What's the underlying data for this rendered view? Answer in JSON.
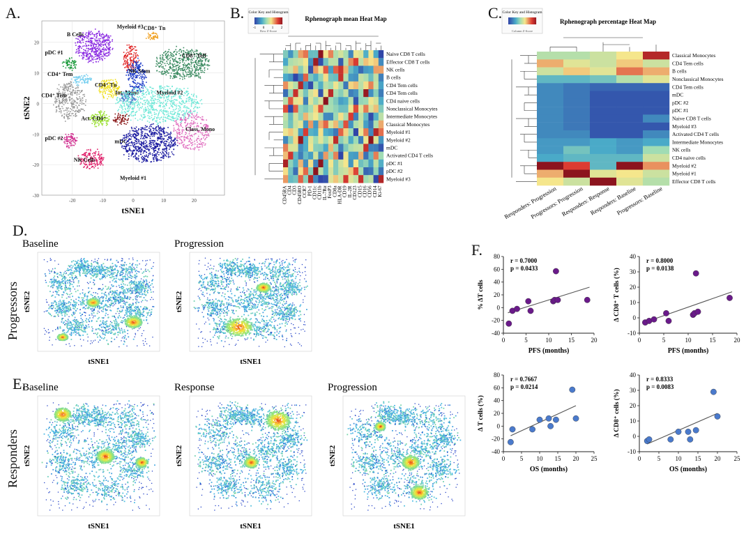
{
  "panels": {
    "A": {
      "label": "A.",
      "xlabel": "tSNE1",
      "ylabel": "tSNE2",
      "xticks": [
        "-20",
        "-10",
        "0",
        "10",
        "20"
      ],
      "yticks": [
        "20",
        "10",
        "0",
        "-10",
        "-20",
        "-30"
      ],
      "clusters": [
        {
          "name": "B Cells",
          "color": "#8b2be2"
        },
        {
          "name": "Myeloid #3",
          "color": "#e02020"
        },
        {
          "name": "CD8⁺ Tn",
          "color": "#f0a020"
        },
        {
          "name": "CD8⁺ Teff",
          "color": "#3a8a60"
        },
        {
          "name": "pDC #1",
          "color": "#1a9a3a"
        },
        {
          "name": "NK Stem",
          "color": "#1e3cc8"
        },
        {
          "name": "CD4⁺ Tem",
          "color": "#7ad0f0"
        },
        {
          "name": "CD4⁺ Tn",
          "color": "#f0e020"
        },
        {
          "name": "Int. Mono",
          "color": "#4a7acc"
        },
        {
          "name": "CD4⁺ Tem",
          "color": "#999999"
        },
        {
          "name": "Myeloid #2",
          "color": "#70e8d8"
        },
        {
          "name": "Act. CD4⁺",
          "color": "#9ae030"
        },
        {
          "name": "mDC",
          "color": "#8a1a1a"
        },
        {
          "name": "pDC #2",
          "color": "#d03090"
        },
        {
          "name": "NK Cells",
          "color": "#e0206a"
        },
        {
          "name": "Class. Mono",
          "color": "#e070c0"
        },
        {
          "name": "Myeloid #1",
          "color": "#1a1aa0"
        }
      ]
    },
    "B": {
      "label": "B.",
      "title": "Rphenograph mean Heat Map",
      "key_title": "Color Key and Histogram",
      "key_axis": "Row Z-Score",
      "key_ticks": [
        "-1",
        "0",
        "1",
        "2"
      ],
      "rows": [
        "Naive CD8 T cells",
        "Effector CD8 T cells",
        "NK cells",
        "B cells",
        "CD4 Tem cells",
        "CD4 Tem cells",
        "CD4 naive cells",
        "Nonclassical Monocytes",
        "Intermediate Monocytes",
        "Classical Monocytes",
        "Myeloid #1",
        "Myeloid #2",
        "mDC",
        "Activated CD4 T cells",
        "pDC #1",
        "pDC #2",
        "Myeloid #3"
      ],
      "cols": [
        "CD45RA",
        "CD4",
        "CD3",
        "CD45RO",
        "CCR7",
        "PD-1",
        "CD11c",
        "CD11b",
        "IL-7Rα",
        "FoxP3",
        "CD8a",
        "HLA-DR",
        "CD19",
        "IL-2R",
        "CD123",
        "CD15",
        "CD16",
        "CD56",
        "CD14",
        "Ki-67"
      ]
    },
    "C": {
      "label": "C.",
      "title": "Rphenograph percentage Heat Map",
      "key_title": "Color Key and Histogram",
      "key_axis": "Column Z-Score",
      "rows": [
        "Classical Monocytes",
        "CD4 Tem cells",
        "B cells",
        "Nonclassical Monocytes",
        "CD4 Tem cells",
        "mDC",
        "pDC #2",
        "pDC #1",
        "Naive CD8 T cells",
        "Myeloid #3",
        "Activated CD4 T cells",
        "Intermediate Monocytes",
        "NK cells",
        "CD4 naive cells",
        "Myeloid #2",
        "Myeloid #1",
        "Effector CD8 T cells"
      ],
      "cols": [
        "Responders: Progression",
        "Progressors: Progression",
        "Responders: Response",
        "Responders: Baseline",
        "Progressors: Baseline"
      ]
    },
    "D": {
      "label": "D.",
      "row_label": "Progressors",
      "plots": [
        {
          "title": "Baseline"
        },
        {
          "title": "Progression"
        }
      ],
      "xlabel": "tSNE1",
      "ylabel": "tSNE2"
    },
    "E": {
      "label": "E.",
      "row_label": "Responders",
      "plots": [
        {
          "title": "Baseline"
        },
        {
          "title": "Response"
        },
        {
          "title": "Progression"
        }
      ],
      "xlabel": "tSNE1",
      "ylabel": "tSNE2"
    },
    "F": {
      "label": "F."
    }
  },
  "chart_data": [
    {
      "type": "scatter",
      "id": "f1",
      "annotation_r": "r = 0.7000",
      "annotation_p": "p = 0.0433",
      "xlabel": "PFS (months)",
      "ylabel": "% ΔT cells",
      "xlim": [
        0,
        20
      ],
      "ylim": [
        -40,
        80
      ],
      "xticks": [
        0,
        5,
        10,
        15,
        20
      ],
      "yticks": [
        -40,
        -20,
        0,
        20,
        40,
        60,
        80
      ],
      "color": "#6a1a8a",
      "points": [
        [
          1.2,
          -25
        ],
        [
          2,
          -5
        ],
        [
          3,
          -2
        ],
        [
          5.5,
          10
        ],
        [
          6,
          -5
        ],
        [
          11,
          10
        ],
        [
          11.3,
          12
        ],
        [
          11.6,
          57
        ],
        [
          12,
          12
        ],
        [
          18.5,
          12
        ]
      ],
      "fit": [
        [
          1,
          -8
        ],
        [
          19,
          32
        ]
      ]
    },
    {
      "type": "scatter",
      "id": "f2",
      "annotation_r": "r = 0.8000",
      "annotation_p": "p = 0.0138",
      "xlabel": "PFS (months)",
      "ylabel": "Δ CD8⁺ T cells (%)",
      "xlim": [
        0,
        20
      ],
      "ylim": [
        -10,
        40
      ],
      "xticks": [
        0,
        5,
        10,
        15,
        20
      ],
      "yticks": [
        -10,
        0,
        10,
        20,
        30,
        40
      ],
      "color": "#6a1a8a",
      "points": [
        [
          1.2,
          -3
        ],
        [
          2,
          -2
        ],
        [
          3,
          -1
        ],
        [
          5.5,
          3
        ],
        [
          6,
          -2
        ],
        [
          11,
          2
        ],
        [
          11.3,
          3
        ],
        [
          11.6,
          29
        ],
        [
          12,
          4
        ],
        [
          18.5,
          13
        ]
      ],
      "fit": [
        [
          1,
          -3
        ],
        [
          19,
          17
        ]
      ]
    },
    {
      "type": "scatter",
      "id": "f3",
      "annotation_r": "r = 0.7667",
      "annotation_p": "p = 0.0214",
      "xlabel": "OS (months)",
      "ylabel": "Δ T cells (%)",
      "xlim": [
        0,
        25
      ],
      "ylim": [
        -40,
        80
      ],
      "xticks": [
        0,
        5,
        10,
        15,
        20,
        25
      ],
      "yticks": [
        -40,
        -20,
        0,
        20,
        40,
        60,
        80
      ],
      "color": "#4a7acc",
      "points": [
        [
          2,
          -25
        ],
        [
          2.5,
          -5
        ],
        [
          8,
          -5
        ],
        [
          10,
          10
        ],
        [
          12.5,
          12
        ],
        [
          13,
          0
        ],
        [
          14.5,
          10
        ],
        [
          19,
          57
        ],
        [
          20,
          12
        ]
      ],
      "fit": [
        [
          2,
          -15
        ],
        [
          20,
          32
        ]
      ]
    },
    {
      "type": "scatter",
      "id": "f4",
      "annotation_r": "r = 0.8333",
      "annotation_p": "p = 0.0083",
      "xlabel": "OS (months)",
      "ylabel": "Δ CD8⁺ cells (%)",
      "xlim": [
        0,
        25
      ],
      "ylim": [
        -10,
        40
      ],
      "xticks": [
        0,
        5,
        10,
        15,
        20,
        25
      ],
      "yticks": [
        -10,
        0,
        10,
        20,
        30,
        40
      ],
      "color": "#4a7acc",
      "points": [
        [
          2,
          -3
        ],
        [
          2.5,
          -2
        ],
        [
          8,
          -2
        ],
        [
          10,
          3
        ],
        [
          12.5,
          3
        ],
        [
          13,
          -2
        ],
        [
          14.5,
          4
        ],
        [
          19,
          29
        ],
        [
          20,
          13
        ]
      ],
      "fit": [
        [
          2,
          -5
        ],
        [
          20,
          15
        ]
      ]
    }
  ]
}
